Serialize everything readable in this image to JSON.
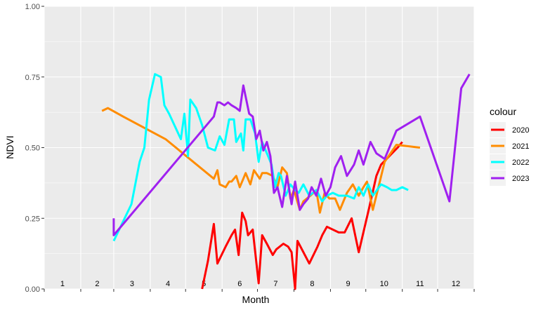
{
  "chart_data": {
    "type": "line",
    "xlabel": "Month",
    "ylabel": "NDVI",
    "ylim": [
      0,
      1
    ],
    "xlim": [
      1,
      366
    ],
    "y_ticks": [
      "0.00",
      "0.25",
      "0.50",
      "0.75",
      "1.00"
    ],
    "month_labels": [
      "1",
      "2",
      "3",
      "4",
      "5",
      "6",
      "7",
      "8",
      "9",
      "10",
      "11",
      "12"
    ],
    "grid": true,
    "legend": {
      "title": "colour",
      "position": "right",
      "entries": [
        "2020",
        "2021",
        "2022",
        "2023"
      ]
    },
    "colors": {
      "2020": "#ff0000",
      "2021": "#ff8c00",
      "2022": "#00ffff",
      "2023": "#a020f0"
    },
    "series": [
      {
        "name": "2020",
        "x": [
          135,
          140,
          145,
          148,
          155,
          160,
          163,
          166,
          169,
          172,
          174,
          178,
          183,
          186,
          190,
          195,
          198,
          204,
          208,
          211,
          214,
          216,
          226,
          233,
          237,
          241,
          251,
          256,
          262,
          268,
          277,
          283,
          287,
          301,
          305
        ],
        "y": [
          0.0,
          0.1,
          0.23,
          0.09,
          0.15,
          0.19,
          0.21,
          0.12,
          0.27,
          0.24,
          0.19,
          0.21,
          0.02,
          0.19,
          0.16,
          0.12,
          0.14,
          0.16,
          0.15,
          0.13,
          0.0,
          0.17,
          0.09,
          0.15,
          0.19,
          0.22,
          0.2,
          0.2,
          0.25,
          0.13,
          0.29,
          0.4,
          0.44,
          0.5,
          0.52
        ]
      },
      {
        "name": "2021",
        "x": [
          50,
          55,
          68,
          104,
          145,
          148,
          150,
          155,
          158,
          160,
          164,
          167,
          170,
          172,
          176,
          179,
          184,
          186,
          190,
          195,
          199,
          203,
          207,
          210,
          213,
          218,
          221,
          227,
          232,
          235,
          239,
          243,
          248,
          252,
          258,
          263,
          268,
          272,
          275,
          280,
          290,
          300,
          320
        ],
        "y": [
          0.63,
          0.64,
          0.61,
          0.53,
          0.39,
          0.42,
          0.37,
          0.36,
          0.38,
          0.38,
          0.4,
          0.36,
          0.39,
          0.41,
          0.37,
          0.42,
          0.39,
          0.41,
          0.41,
          0.4,
          0.36,
          0.43,
          0.41,
          0.32,
          0.35,
          0.28,
          0.31,
          0.33,
          0.35,
          0.27,
          0.34,
          0.32,
          0.32,
          0.28,
          0.34,
          0.37,
          0.33,
          0.36,
          0.38,
          0.28,
          0.45,
          0.51,
          0.5
        ]
      },
      {
        "name": "2022",
        "x": [
          60,
          75,
          82,
          86,
          90,
          95,
          100,
          103,
          107,
          117,
          120,
          123,
          125,
          130,
          135,
          140,
          146,
          150,
          154,
          158,
          162,
          164,
          168,
          170,
          172,
          176,
          180,
          183,
          186,
          189,
          191,
          194,
          197,
          200,
          202,
          206,
          210,
          214,
          217,
          221,
          226,
          232,
          237,
          241,
          246,
          251,
          258,
          264,
          268,
          272,
          276,
          280,
          287,
          292,
          296,
          300,
          305,
          310
        ],
        "y": [
          0.17,
          0.3,
          0.45,
          0.5,
          0.67,
          0.76,
          0.75,
          0.65,
          0.62,
          0.53,
          0.62,
          0.47,
          0.67,
          0.64,
          0.58,
          0.5,
          0.49,
          0.54,
          0.51,
          0.6,
          0.6,
          0.52,
          0.55,
          0.49,
          0.6,
          0.6,
          0.55,
          0.45,
          0.52,
          0.49,
          0.47,
          0.44,
          0.36,
          0.41,
          0.4,
          0.33,
          0.37,
          0.35,
          0.34,
          0.37,
          0.33,
          0.35,
          0.31,
          0.33,
          0.34,
          0.33,
          0.33,
          0.32,
          0.36,
          0.33,
          0.37,
          0.33,
          0.37,
          0.36,
          0.35,
          0.35,
          0.36,
          0.35
        ]
      },
      {
        "name": "2023",
        "x": [
          60,
          60,
          145,
          148,
          150,
          154,
          157,
          160,
          164,
          167,
          170,
          175,
          178,
          181,
          184,
          187,
          190,
          193,
          196,
          199,
          203,
          207,
          211,
          214,
          218,
          221,
          225,
          228,
          232,
          236,
          240,
          244,
          248,
          253,
          258,
          264,
          268,
          272,
          278,
          283,
          290,
          300,
          320,
          345,
          355,
          362
        ],
        "y": [
          0.25,
          0.19,
          0.61,
          0.66,
          0.66,
          0.65,
          0.66,
          0.65,
          0.64,
          0.63,
          0.72,
          0.62,
          0.61,
          0.53,
          0.56,
          0.49,
          0.52,
          0.47,
          0.34,
          0.36,
          0.29,
          0.4,
          0.3,
          0.38,
          0.28,
          0.3,
          0.32,
          0.36,
          0.33,
          0.39,
          0.33,
          0.36,
          0.43,
          0.47,
          0.4,
          0.44,
          0.49,
          0.44,
          0.52,
          0.48,
          0.46,
          0.56,
          0.61,
          0.31,
          0.71,
          0.76
        ]
      }
    ]
  }
}
